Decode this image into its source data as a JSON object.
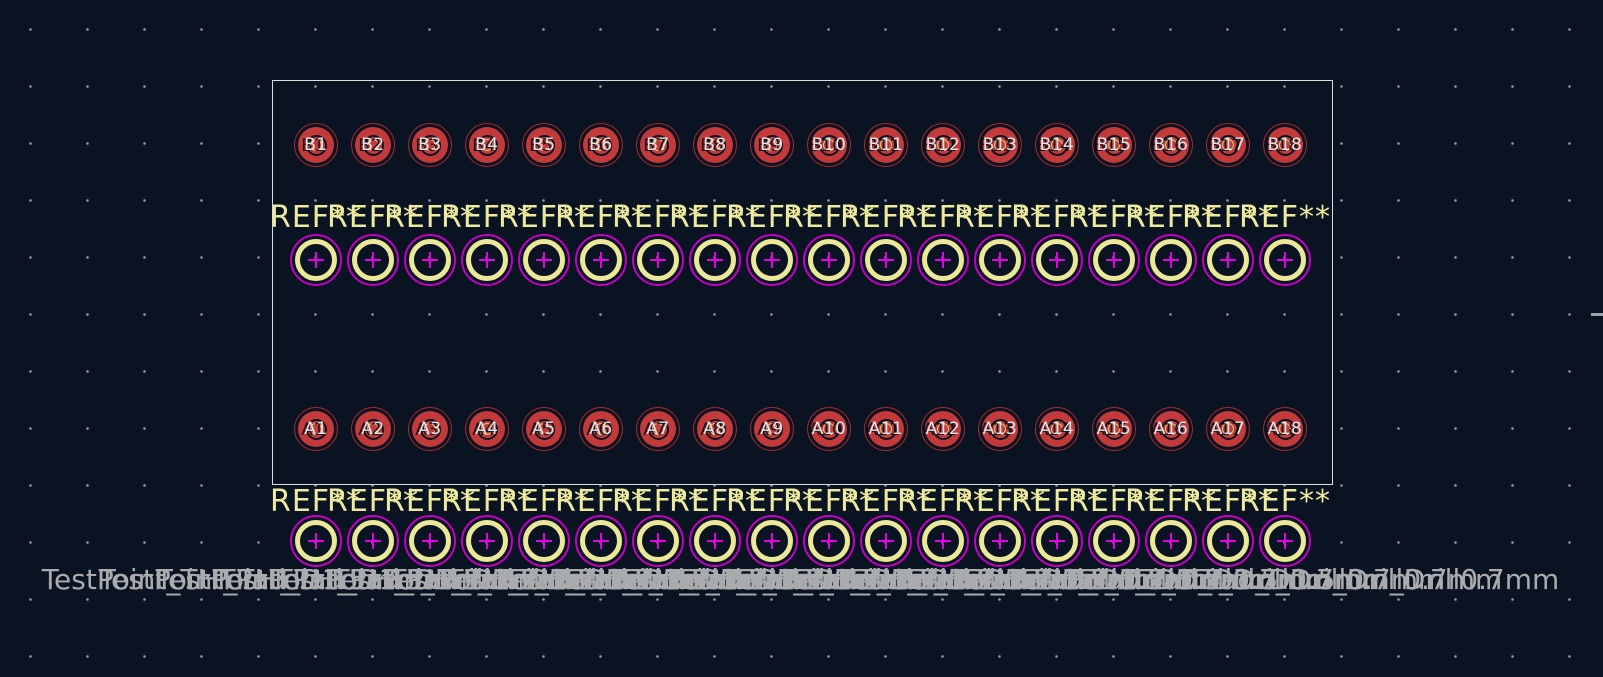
{
  "app": {
    "view": "pcb-footprint-canvas"
  },
  "colors": {
    "background": "#0a1322",
    "grid_dot": "#a5afb9",
    "board_outline": "#d9dddd",
    "copper_pad_red": "#c43a3a",
    "pad_ring_red": "#ad2929",
    "drill_yellow": "#d6cc74",
    "testpoint_ring_yellow": "#ece89a",
    "mask_magenta": "#c400c4",
    "anchor_magenta": "#e600e6",
    "silk_ref_yellow": "#efeb9e",
    "fab_value_gray": "#a9abad",
    "pad_number_white": "#e3e6e9"
  },
  "connector": {
    "row_b_pads": [
      "B1",
      "B2",
      "B3",
      "B4",
      "B5",
      "B6",
      "B7",
      "B8",
      "B9",
      "B10",
      "B11",
      "B12",
      "B13",
      "B14",
      "B15",
      "B16",
      "B17",
      "B18"
    ],
    "row_a_pads": [
      "A1",
      "A2",
      "A3",
      "A4",
      "A5",
      "A6",
      "A7",
      "A8",
      "A9",
      "A10",
      "A11",
      "A12",
      "A13",
      "A14",
      "A15",
      "A16",
      "A17",
      "A18"
    ]
  },
  "testpoints": {
    "ref": "REF**",
    "value": "TestPoint_THTPad_D1.5mm_Drill0.7mm",
    "count_per_row": 18,
    "rows": 2
  }
}
